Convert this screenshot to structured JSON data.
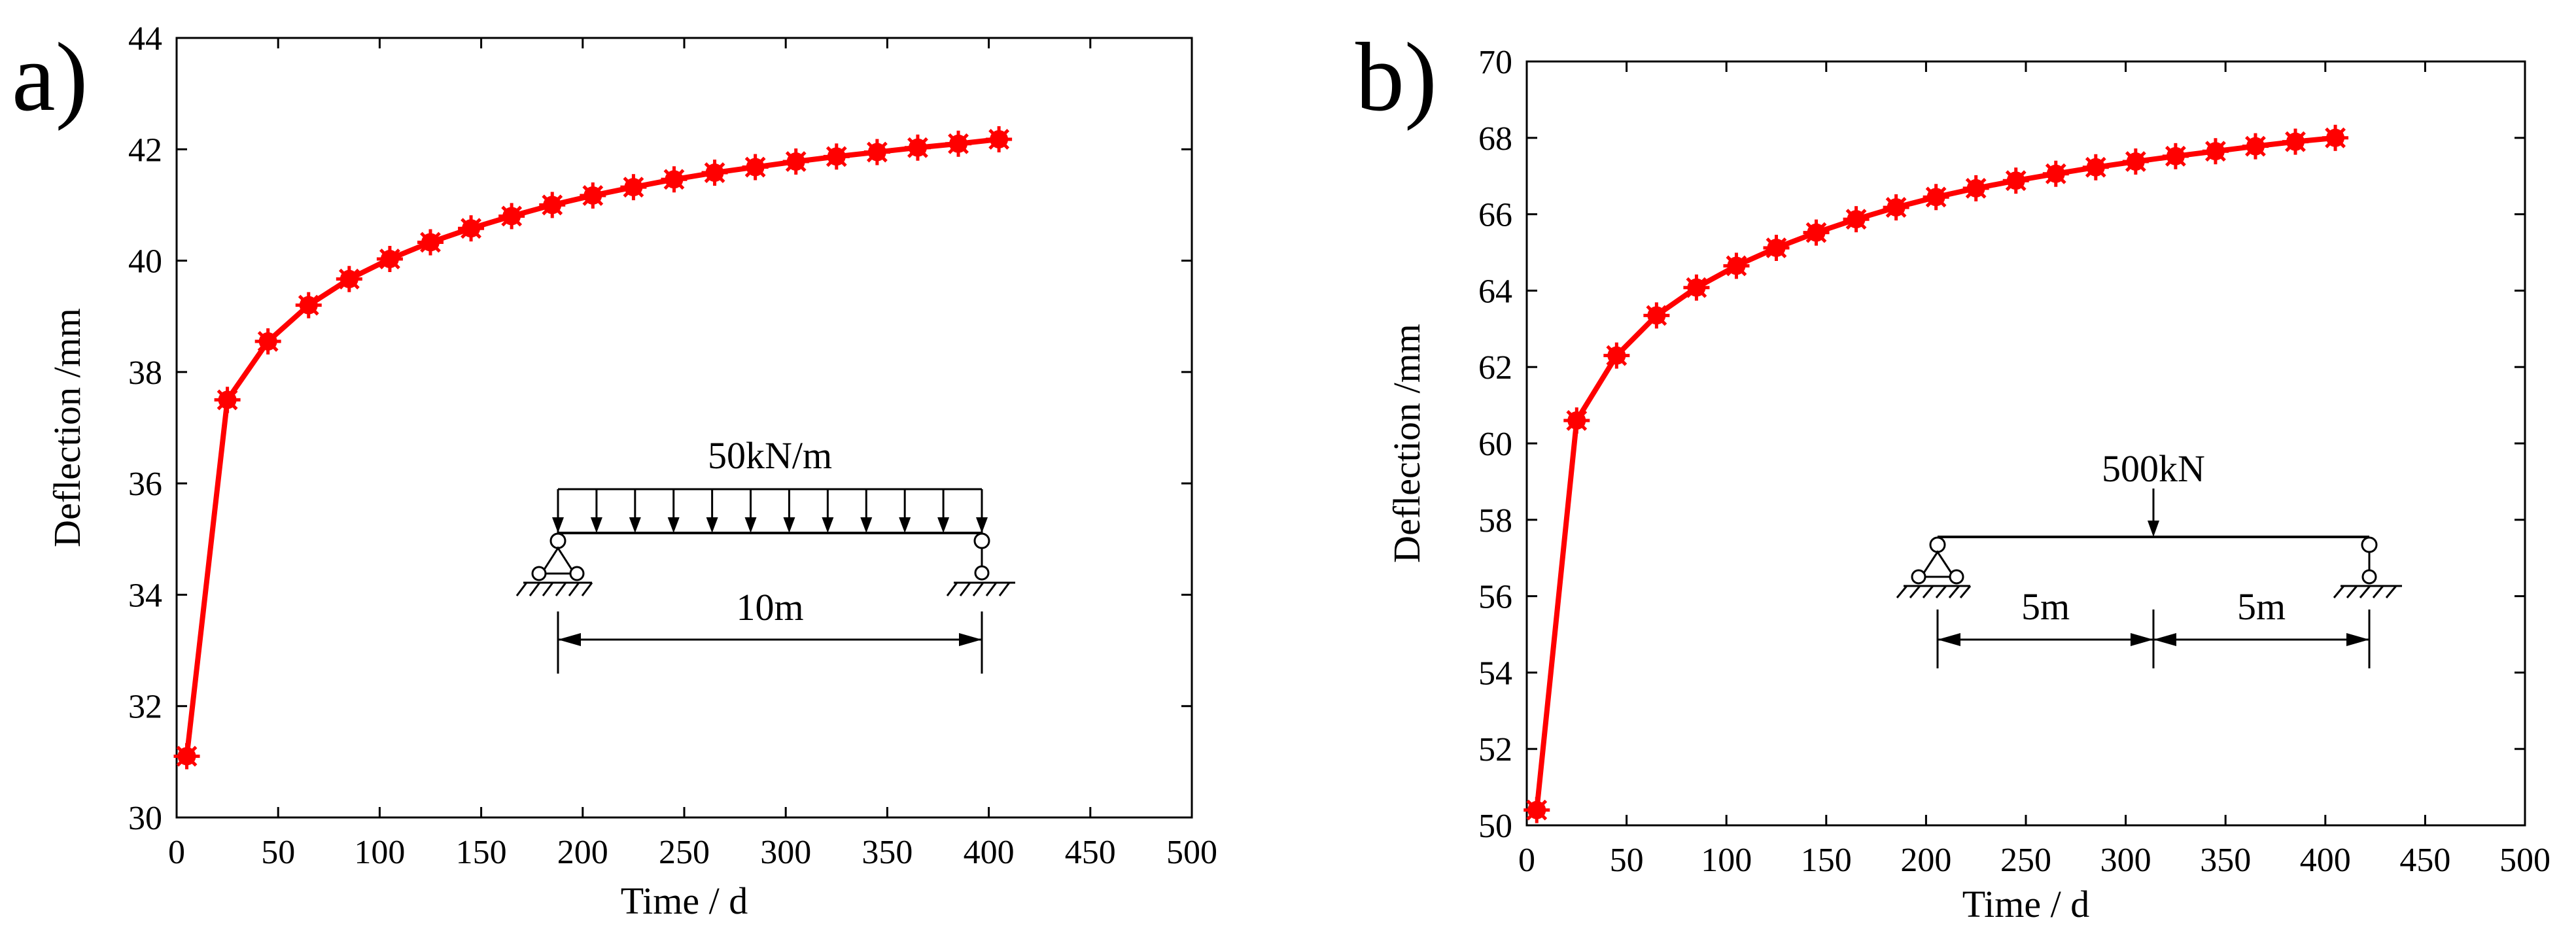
{
  "chart_data": [
    {
      "panel": "a)",
      "type": "line",
      "xlabel": "Time / d",
      "ylabel": "Deflection /mm",
      "xlim": [
        0,
        500
      ],
      "ylim": [
        30,
        44
      ],
      "xticks": [
        0,
        50,
        100,
        150,
        200,
        250,
        300,
        350,
        400,
        450,
        500
      ],
      "yticks": [
        30,
        32,
        34,
        36,
        38,
        40,
        42,
        44
      ],
      "grid": false,
      "marker": "asterisk",
      "color": "#ff0000",
      "series": [
        {
          "name": "Deflection",
          "x": [
            5,
            25,
            45,
            65,
            85,
            105,
            125,
            145,
            165,
            185,
            205,
            225,
            245,
            265,
            285,
            305,
            325,
            345,
            365,
            385,
            405
          ],
          "y": [
            31.1,
            37.5,
            38.55,
            39.2,
            39.67,
            40.03,
            40.33,
            40.58,
            40.8,
            41.0,
            41.17,
            41.32,
            41.46,
            41.58,
            41.68,
            41.78,
            41.87,
            41.95,
            42.03,
            42.1,
            42.18
          ]
        }
      ],
      "annotations": {
        "load_label": "50kN/m",
        "span_label": "10m"
      }
    },
    {
      "panel": "b)",
      "type": "line",
      "xlabel": "Time / d",
      "ylabel": "Deflection /mm",
      "xlim": [
        0,
        500
      ],
      "ylim": [
        50,
        70
      ],
      "xticks": [
        0,
        50,
        100,
        150,
        200,
        250,
        300,
        350,
        400,
        450,
        500
      ],
      "yticks": [
        50,
        52,
        54,
        56,
        58,
        60,
        62,
        64,
        66,
        68,
        70
      ],
      "grid": false,
      "marker": "asterisk",
      "color": "#ff0000",
      "series": [
        {
          "name": "Deflection",
          "x": [
            5,
            25,
            45,
            65,
            85,
            105,
            125,
            145,
            165,
            185,
            205,
            225,
            245,
            265,
            285,
            305,
            325,
            345,
            365,
            385,
            405
          ],
          "y": [
            50.4,
            60.6,
            62.3,
            63.35,
            64.08,
            64.65,
            65.12,
            65.52,
            65.87,
            66.18,
            66.45,
            66.68,
            66.88,
            67.06,
            67.23,
            67.38,
            67.52,
            67.65,
            67.78,
            67.9,
            68.0
          ]
        }
      ],
      "annotations": {
        "load_label": "500kN",
        "span_left_label": "5m",
        "span_right_label": "5m"
      }
    }
  ]
}
